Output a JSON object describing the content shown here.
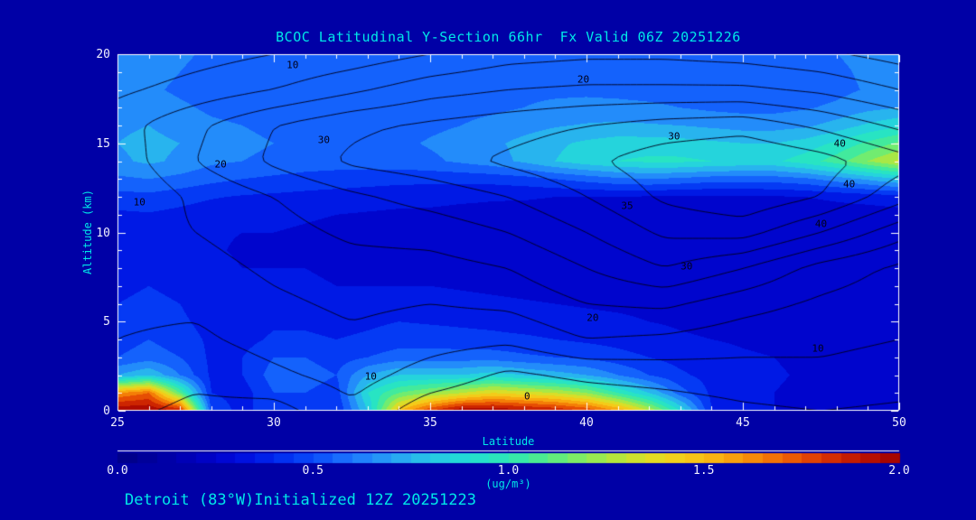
{
  "title": "BCOC Latitudinal Y-Section 66hr  Fx Valid 06Z 20251226",
  "footer": "Detroit (83°W)Initialized 12Z 20251223",
  "colors": {
    "background": "#0000A6",
    "title_text": "#00E8E8",
    "tick_text": "#F0F0FF",
    "frame": "#FFFFFF",
    "contour_line": "#000019"
  },
  "chart_data": {
    "type": "heatmap",
    "title": "BCOC Latitudinal Y-Section 66hr  Fx Valid 06Z 20251226",
    "xlabel": "Latitude",
    "ylabel": "Altitude (km)",
    "xlim": [
      25,
      50
    ],
    "ylim": [
      0,
      20
    ],
    "xticks": [
      "25",
      "30",
      "35",
      "40",
      "45",
      "50"
    ],
    "yticks": [
      "0",
      "5",
      "10",
      "15",
      "20"
    ],
    "grid": false,
    "colorbar": {
      "min": 0.0,
      "max": 2.0,
      "ticks": [
        "0.0",
        "0.5",
        "1.0",
        "1.5",
        "2.0"
      ],
      "unit": "(ug/m³)"
    },
    "colormap": [
      [
        0.0,
        "#000085"
      ],
      [
        0.1,
        "#0000A0"
      ],
      [
        0.2,
        "#0000BE"
      ],
      [
        0.3,
        "#000ADC"
      ],
      [
        0.4,
        "#0028EE"
      ],
      [
        0.5,
        "#0A4CFA"
      ],
      [
        0.6,
        "#1E78FF"
      ],
      [
        0.7,
        "#28A0F5"
      ],
      [
        0.8,
        "#28C8E6"
      ],
      [
        0.9,
        "#22DFD2"
      ],
      [
        1.0,
        "#2EE8B4"
      ],
      [
        1.1,
        "#56EC86"
      ],
      [
        1.2,
        "#8CEC5A"
      ],
      [
        1.3,
        "#C4E432"
      ],
      [
        1.4,
        "#EED81E"
      ],
      [
        1.5,
        "#FABE14"
      ],
      [
        1.6,
        "#F8960A"
      ],
      [
        1.7,
        "#F06604"
      ],
      [
        1.8,
        "#DC3602"
      ],
      [
        1.9,
        "#BE1400"
      ],
      [
        2.0,
        "#A00000"
      ]
    ],
    "lats": [
      25,
      26,
      27,
      28,
      29,
      30,
      31,
      32,
      33,
      34,
      35,
      36,
      37,
      38,
      39,
      40,
      41,
      42,
      43,
      44,
      45,
      46,
      47,
      48,
      49,
      50
    ],
    "alts": [
      0,
      1,
      2,
      3,
      4,
      5,
      6,
      7,
      8,
      9,
      10,
      11,
      12,
      13,
      14,
      15,
      16,
      17,
      18,
      19,
      20
    ],
    "values": [
      [
        2.0,
        2.0,
        1.9,
        0.5,
        0.35,
        0.5,
        0.45,
        0.4,
        0.8,
        1.5,
        1.8,
        2.0,
        2.0,
        1.95,
        1.9,
        1.8,
        1.6,
        1.3,
        0.9,
        0.4,
        0.32,
        0.3,
        0.28,
        0.26,
        0.25,
        0.25
      ],
      [
        1.6,
        1.7,
        1.1,
        0.4,
        0.35,
        0.5,
        0.5,
        0.45,
        0.9,
        1.1,
        1.2,
        1.3,
        1.4,
        1.35,
        1.3,
        1.2,
        1.0,
        0.8,
        0.55,
        0.38,
        0.32,
        0.3,
        0.28,
        0.26,
        0.25,
        0.25
      ],
      [
        0.7,
        0.8,
        0.6,
        0.38,
        0.4,
        0.55,
        0.55,
        0.5,
        0.7,
        0.8,
        0.8,
        0.8,
        0.85,
        0.8,
        0.75,
        0.7,
        0.6,
        0.5,
        0.42,
        0.36,
        0.33,
        0.31,
        0.29,
        0.27,
        0.26,
        0.26
      ],
      [
        0.5,
        0.55,
        0.5,
        0.38,
        0.4,
        0.5,
        0.5,
        0.45,
        0.5,
        0.55,
        0.55,
        0.55,
        0.55,
        0.52,
        0.5,
        0.48,
        0.44,
        0.4,
        0.36,
        0.33,
        0.31,
        0.3,
        0.28,
        0.27,
        0.26,
        0.26
      ],
      [
        0.45,
        0.5,
        0.45,
        0.38,
        0.36,
        0.42,
        0.42,
        0.4,
        0.42,
        0.45,
        0.45,
        0.44,
        0.43,
        0.42,
        0.4,
        0.38,
        0.36,
        0.33,
        0.31,
        0.3,
        0.29,
        0.28,
        0.27,
        0.26,
        0.25,
        0.25
      ],
      [
        0.42,
        0.45,
        0.42,
        0.36,
        0.34,
        0.38,
        0.38,
        0.36,
        0.38,
        0.4,
        0.39,
        0.38,
        0.37,
        0.35,
        0.34,
        0.33,
        0.32,
        0.3,
        0.29,
        0.28,
        0.27,
        0.26,
        0.25,
        0.24,
        0.24,
        0.24
      ],
      [
        0.4,
        0.42,
        0.4,
        0.34,
        0.32,
        0.35,
        0.35,
        0.33,
        0.34,
        0.35,
        0.34,
        0.33,
        0.32,
        0.31,
        0.3,
        0.29,
        0.28,
        0.27,
        0.26,
        0.26,
        0.25,
        0.24,
        0.24,
        0.23,
        0.23,
        0.23
      ],
      [
        0.38,
        0.4,
        0.38,
        0.33,
        0.3,
        0.32,
        0.32,
        0.3,
        0.3,
        0.3,
        0.3,
        0.29,
        0.28,
        0.27,
        0.26,
        0.26,
        0.25,
        0.25,
        0.24,
        0.24,
        0.23,
        0.23,
        0.22,
        0.22,
        0.22,
        0.22
      ],
      [
        0.37,
        0.38,
        0.35,
        0.32,
        0.3,
        0.3,
        0.3,
        0.28,
        0.27,
        0.27,
        0.26,
        0.26,
        0.25,
        0.24,
        0.24,
        0.23,
        0.23,
        0.22,
        0.22,
        0.22,
        0.21,
        0.21,
        0.21,
        0.21,
        0.21,
        0.21
      ],
      [
        0.36,
        0.37,
        0.34,
        0.31,
        0.29,
        0.29,
        0.28,
        0.27,
        0.26,
        0.25,
        0.25,
        0.24,
        0.24,
        0.23,
        0.23,
        0.22,
        0.22,
        0.22,
        0.21,
        0.21,
        0.21,
        0.21,
        0.21,
        0.21,
        0.21,
        0.21
      ],
      [
        0.36,
        0.37,
        0.34,
        0.31,
        0.3,
        0.3,
        0.29,
        0.28,
        0.27,
        0.26,
        0.25,
        0.25,
        0.24,
        0.24,
        0.23,
        0.23,
        0.23,
        0.22,
        0.22,
        0.22,
        0.22,
        0.22,
        0.22,
        0.22,
        0.22,
        0.22
      ],
      [
        0.38,
        0.39,
        0.37,
        0.34,
        0.33,
        0.32,
        0.31,
        0.3,
        0.29,
        0.28,
        0.28,
        0.27,
        0.27,
        0.26,
        0.26,
        0.26,
        0.25,
        0.25,
        0.25,
        0.24,
        0.24,
        0.24,
        0.24,
        0.25,
        0.25,
        0.26
      ],
      [
        0.46,
        0.47,
        0.44,
        0.41,
        0.39,
        0.38,
        0.37,
        0.36,
        0.35,
        0.34,
        0.33,
        0.32,
        0.31,
        0.31,
        0.3,
        0.3,
        0.3,
        0.29,
        0.28,
        0.28,
        0.28,
        0.29,
        0.3,
        0.32,
        0.34,
        0.36
      ],
      [
        0.58,
        0.6,
        0.57,
        0.53,
        0.5,
        0.48,
        0.46,
        0.45,
        0.44,
        0.43,
        0.43,
        0.43,
        0.44,
        0.46,
        0.5,
        0.54,
        0.58,
        0.6,
        0.58,
        0.55,
        0.55,
        0.55,
        0.58,
        0.65,
        0.72,
        0.8
      ],
      [
        0.68,
        0.72,
        0.68,
        0.62,
        0.6,
        0.58,
        0.56,
        0.55,
        0.55,
        0.56,
        0.58,
        0.62,
        0.66,
        0.72,
        0.8,
        0.86,
        0.9,
        0.92,
        0.92,
        0.9,
        0.88,
        0.88,
        0.95,
        1.05,
        1.2,
        1.32
      ],
      [
        0.7,
        0.73,
        0.7,
        0.65,
        0.62,
        0.6,
        0.58,
        0.57,
        0.57,
        0.58,
        0.61,
        0.64,
        0.68,
        0.73,
        0.78,
        0.82,
        0.85,
        0.85,
        0.84,
        0.82,
        0.8,
        0.8,
        0.84,
        0.92,
        1.02,
        1.12
      ],
      [
        0.68,
        0.7,
        0.66,
        0.62,
        0.6,
        0.58,
        0.56,
        0.55,
        0.55,
        0.56,
        0.58,
        0.6,
        0.63,
        0.66,
        0.69,
        0.71,
        0.72,
        0.71,
        0.7,
        0.68,
        0.66,
        0.66,
        0.68,
        0.74,
        0.82,
        0.88
      ],
      [
        0.65,
        0.66,
        0.62,
        0.58,
        0.56,
        0.55,
        0.54,
        0.53,
        0.53,
        0.54,
        0.55,
        0.57,
        0.58,
        0.6,
        0.62,
        0.63,
        0.63,
        0.62,
        0.6,
        0.58,
        0.57,
        0.57,
        0.59,
        0.62,
        0.67,
        0.7
      ],
      [
        0.63,
        0.62,
        0.58,
        0.55,
        0.53,
        0.52,
        0.52,
        0.52,
        0.53,
        0.54,
        0.55,
        0.56,
        0.57,
        0.58,
        0.58,
        0.58,
        0.57,
        0.56,
        0.55,
        0.54,
        0.53,
        0.54,
        0.55,
        0.57,
        0.61,
        0.64
      ],
      [
        0.66,
        0.64,
        0.6,
        0.56,
        0.54,
        0.53,
        0.53,
        0.54,
        0.55,
        0.56,
        0.57,
        0.58,
        0.58,
        0.58,
        0.57,
        0.56,
        0.55,
        0.54,
        0.54,
        0.54,
        0.54,
        0.55,
        0.56,
        0.58,
        0.62,
        0.65
      ],
      [
        0.68,
        0.66,
        0.62,
        0.58,
        0.56,
        0.55,
        0.55,
        0.56,
        0.57,
        0.58,
        0.59,
        0.59,
        0.59,
        0.58,
        0.57,
        0.56,
        0.55,
        0.55,
        0.55,
        0.55,
        0.56,
        0.57,
        0.58,
        0.6,
        0.63,
        0.66
      ]
    ],
    "contour_overlay": {
      "levels": [
        5,
        10,
        15,
        20,
        25,
        30,
        35,
        40,
        45
      ],
      "lats": [
        25,
        27.5,
        30,
        32.5,
        35,
        37.5,
        40,
        42.5,
        45,
        47.5,
        50
      ],
      "alts": [
        0,
        2,
        4,
        6,
        8,
        10,
        12,
        14,
        16,
        18,
        20
      ],
      "values": [
        [
          6,
          4,
          3,
          9,
          2,
          0,
          1,
          2,
          4,
          5,
          4
        ],
        [
          8,
          6,
          9,
          12,
          8,
          4,
          6,
          7,
          8,
          9,
          8
        ],
        [
          10,
          9,
          12,
          14,
          12,
          11,
          15,
          14,
          12,
          11,
          10
        ],
        [
          11,
          11,
          14,
          16,
          15,
          16,
          20,
          21,
          17,
          14,
          12
        ],
        [
          12,
          13,
          16,
          18,
          18,
          20,
          25,
          30,
          25,
          18,
          14
        ],
        [
          13,
          15,
          18,
          21,
          22,
          25,
          30,
          36,
          37,
          30,
          22
        ],
        [
          10,
          16,
          20,
          24,
          27,
          30,
          35,
          41,
          44,
          40,
          32
        ],
        [
          12,
          20,
          26,
          31,
          33,
          36,
          39,
          43,
          45,
          42,
          37
        ],
        [
          13,
          19,
          25,
          29,
          31,
          33,
          35,
          37,
          38,
          34,
          29
        ],
        [
          9,
          12,
          15,
          19,
          23,
          25,
          26,
          26,
          26,
          24,
          20
        ],
        [
          6,
          8,
          10,
          12,
          15,
          18,
          19,
          19,
          18,
          16,
          13
        ]
      ],
      "labels": [
        {
          "text": "10",
          "lat": 30.6,
          "alt": 19.4
        },
        {
          "text": "20",
          "lat": 39.9,
          "alt": 18.6
        },
        {
          "text": "20",
          "lat": 28.3,
          "alt": 13.8
        },
        {
          "text": "30",
          "lat": 31.6,
          "alt": 15.2
        },
        {
          "text": "30",
          "lat": 42.8,
          "alt": 15.4
        },
        {
          "text": "40",
          "lat": 48.1,
          "alt": 15.0
        },
        {
          "text": "40",
          "lat": 48.4,
          "alt": 12.7
        },
        {
          "text": "40",
          "lat": 47.5,
          "alt": 10.5
        },
        {
          "text": "35",
          "lat": 41.3,
          "alt": 11.5
        },
        {
          "text": "30",
          "lat": 43.2,
          "alt": 8.1
        },
        {
          "text": "20",
          "lat": 40.2,
          "alt": 5.2
        },
        {
          "text": "10",
          "lat": 47.4,
          "alt": 3.5
        },
        {
          "text": "10",
          "lat": 33.1,
          "alt": 1.9
        },
        {
          "text": "10",
          "lat": 25.7,
          "alt": 11.7
        },
        {
          "text": "0",
          "lat": 38.1,
          "alt": 0.8
        }
      ]
    }
  }
}
